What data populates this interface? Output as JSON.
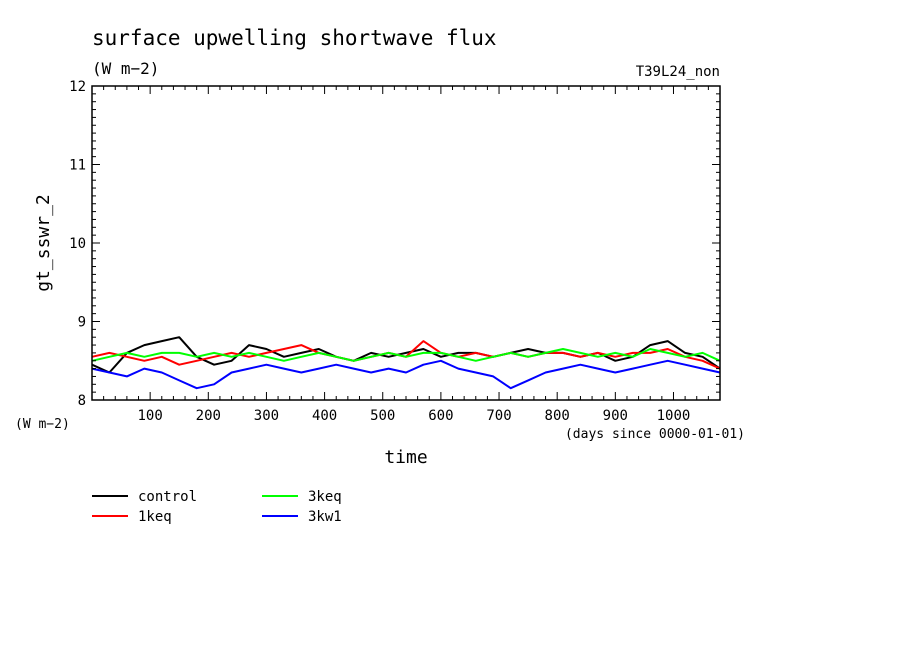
{
  "chart_data": {
    "type": "line",
    "title": "surface upwelling shortwave flux",
    "units": "(W m−2)",
    "run_label": "T39L24_non",
    "xlabel": "time",
    "x_units_note": "(days since 0000-01-01)",
    "ylabel": "gt_sswr_2",
    "y_units_label": "(W m−2)",
    "xlim": [
      0,
      1080
    ],
    "ylim": [
      8,
      12
    ],
    "x_ticks": [
      "100",
      "200",
      "300",
      "400",
      "500",
      "600",
      "700",
      "800",
      "900",
      "1000"
    ],
    "y_ticks": [
      "8",
      "9",
      "10",
      "11",
      "12"
    ],
    "grid": false,
    "legend_position": "below-left",
    "series": [
      {
        "name": "control",
        "color": "#000000",
        "x": [
          0,
          30,
          60,
          90,
          120,
          150,
          180,
          210,
          240,
          270,
          300,
          330,
          360,
          390,
          420,
          450,
          480,
          510,
          540,
          570,
          600,
          630,
          660,
          690,
          720,
          750,
          780,
          810,
          840,
          870,
          900,
          930,
          960,
          990,
          1020,
          1050,
          1080
        ],
        "values": [
          8.45,
          8.35,
          8.6,
          8.7,
          8.75,
          8.8,
          8.55,
          8.45,
          8.5,
          8.7,
          8.65,
          8.55,
          8.6,
          8.65,
          8.55,
          8.5,
          8.6,
          8.55,
          8.6,
          8.65,
          8.55,
          8.6,
          8.6,
          8.55,
          8.6,
          8.65,
          8.6,
          8.6,
          8.55,
          8.6,
          8.5,
          8.55,
          8.7,
          8.75,
          8.6,
          8.55,
          8.4
        ]
      },
      {
        "name": "1keq",
        "color": "#ff0000",
        "x": [
          0,
          30,
          60,
          90,
          120,
          150,
          180,
          210,
          240,
          270,
          300,
          330,
          360,
          390,
          420,
          450,
          480,
          510,
          540,
          570,
          600,
          630,
          660,
          690,
          720,
          750,
          780,
          810,
          840,
          870,
          900,
          930,
          960,
          990,
          1020,
          1050,
          1080
        ],
        "values": [
          8.55,
          8.6,
          8.55,
          8.5,
          8.55,
          8.45,
          8.5,
          8.55,
          8.6,
          8.55,
          8.6,
          8.65,
          8.7,
          8.6,
          8.55,
          8.5,
          8.55,
          8.6,
          8.55,
          8.75,
          8.6,
          8.55,
          8.6,
          8.55,
          8.6,
          8.55,
          8.6,
          8.6,
          8.55,
          8.6,
          8.55,
          8.6,
          8.6,
          8.65,
          8.55,
          8.5,
          8.4
        ]
      },
      {
        "name": "3keq",
        "color": "#00ff00",
        "x": [
          0,
          30,
          60,
          90,
          120,
          150,
          180,
          210,
          240,
          270,
          300,
          330,
          360,
          390,
          420,
          450,
          480,
          510,
          540,
          570,
          600,
          630,
          660,
          690,
          720,
          750,
          780,
          810,
          840,
          870,
          900,
          930,
          960,
          990,
          1020,
          1050,
          1080
        ],
        "values": [
          8.5,
          8.55,
          8.6,
          8.55,
          8.6,
          8.6,
          8.55,
          8.6,
          8.55,
          8.6,
          8.55,
          8.5,
          8.55,
          8.6,
          8.55,
          8.5,
          8.55,
          8.6,
          8.55,
          8.6,
          8.6,
          8.55,
          8.5,
          8.55,
          8.6,
          8.55,
          8.6,
          8.65,
          8.6,
          8.55,
          8.6,
          8.55,
          8.65,
          8.6,
          8.55,
          8.6,
          8.5
        ]
      },
      {
        "name": "3kw1",
        "color": "#0000ff",
        "x": [
          0,
          30,
          60,
          90,
          120,
          150,
          180,
          210,
          240,
          270,
          300,
          330,
          360,
          390,
          420,
          450,
          480,
          510,
          540,
          570,
          600,
          630,
          660,
          690,
          720,
          750,
          780,
          810,
          840,
          870,
          900,
          930,
          960,
          990,
          1020,
          1050,
          1080
        ],
        "values": [
          8.4,
          8.35,
          8.3,
          8.4,
          8.35,
          8.25,
          8.15,
          8.2,
          8.35,
          8.4,
          8.45,
          8.4,
          8.35,
          8.4,
          8.45,
          8.4,
          8.35,
          8.4,
          8.35,
          8.45,
          8.5,
          8.4,
          8.35,
          8.3,
          8.15,
          8.25,
          8.35,
          8.4,
          8.45,
          8.4,
          8.35,
          8.4,
          8.45,
          8.5,
          8.45,
          8.4,
          8.35
        ]
      }
    ]
  }
}
